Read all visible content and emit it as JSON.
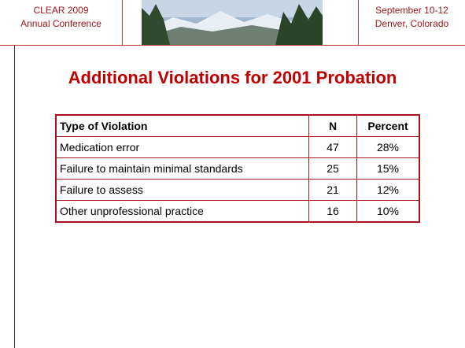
{
  "header": {
    "left": [
      "CLEAR 2009",
      "Annual Conference"
    ],
    "right": [
      "September 10-12",
      "Denver, Colorado"
    ]
  },
  "title": "Additional Violations for 2001 Probation",
  "table": {
    "columns": [
      "Type of Violation",
      "N",
      "Percent"
    ],
    "rows": [
      [
        "Medication error",
        "47",
        "28%"
      ],
      [
        "Failure to maintain minimal standards",
        "25",
        "15%"
      ],
      [
        "Failure to assess",
        "21",
        "12%"
      ],
      [
        "Other unprofessional practice",
        "16",
        "10%"
      ]
    ]
  }
}
